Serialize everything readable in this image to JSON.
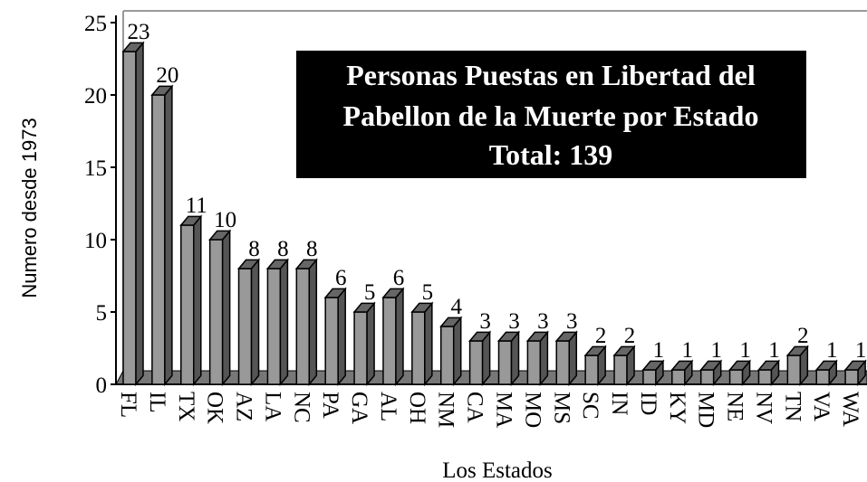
{
  "chart_data": {
    "type": "bar3d",
    "title": [
      "Personas Puestas en Libertad del",
      "Pabellon de la Muerte  por Estado"
    ],
    "subtitle": "Total: 139",
    "x_label": "Los Estados",
    "y_label": "Numero desde 1973",
    "categories": [
      "FL",
      "IL",
      "TX",
      "OK",
      "AZ",
      "LA",
      "NC",
      "PA",
      "GA",
      "AL",
      "OH",
      "NM",
      "CA",
      "MA",
      "MO",
      "MS",
      "SC",
      "IN",
      "ID",
      "KY",
      "MD",
      "NE",
      "NV",
      "TN",
      "VA",
      "WA"
    ],
    "values": [
      23,
      20,
      11,
      10,
      8,
      8,
      8,
      6,
      5,
      6,
      5,
      4,
      3,
      3,
      3,
      3,
      2,
      2,
      1,
      1,
      1,
      1,
      1,
      2,
      1,
      1
    ],
    "color": "#999999",
    "ylim": [
      0,
      25
    ],
    "yticks": [
      0,
      5,
      10,
      15,
      20,
      25
    ]
  }
}
